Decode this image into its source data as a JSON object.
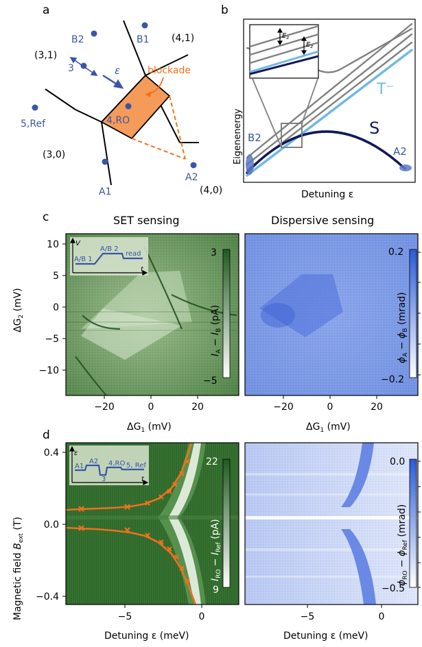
{
  "panel_a": {
    "letter": "a",
    "states": [
      "(3,1)",
      "(4,1)",
      "(3,0)",
      "(4,0)"
    ],
    "dots": [
      {
        "label": "B2"
      },
      {
        "label": "B1"
      },
      {
        "label": "3"
      },
      {
        "label": "5,Ref"
      },
      {
        "label": "4,RO"
      },
      {
        "label": "A1"
      },
      {
        "label": "A2"
      }
    ],
    "epsilon": "ε",
    "blockade": "blockade",
    "colors": {
      "dot": "#3a55a6",
      "blockade_fill": "#f59b59",
      "blockade_line": "#f0711c"
    }
  },
  "panel_b": {
    "letter": "b",
    "ylabel": "Eigenenergy",
    "xlabel": "Detuning ε",
    "t_minus": "T⁻",
    "singlet": "S",
    "b2": "B2",
    "a2": "A2",
    "ez": "E",
    "ez_sub": "z",
    "colors": {
      "gray": "#808080",
      "light_blue": "#6fb8e8",
      "navy": "#14195a"
    }
  },
  "panel_c": {
    "letter": "c",
    "left_title": "SET sensing",
    "right_title": "Dispersive sensing",
    "ylabel_main": "ΔG",
    "ylabel_sub": "2",
    "ylabel_unit": " (mV)",
    "xlabel_main": "ΔG",
    "xlabel_sub": "1",
    "xlabel_unit": " (mV)",
    "y_ticks": [
      "10",
      "5",
      "0",
      "−5",
      "−10"
    ],
    "x_ticks": [
      "−20",
      "0",
      "20"
    ],
    "left_cbar": {
      "max": "3",
      "min": "−5",
      "label": "I_A − I_B (pA)"
    },
    "right_cbar": {
      "max": "0.2",
      "min": "−0.2",
      "label": "ϕ_A − ϕ_B (mrad)"
    },
    "inset": {
      "v": "V",
      "t": "t",
      "ab1": "A/B 1",
      "ab2": "A/B 2",
      "read": "read"
    },
    "colors": {
      "green": "#5d8c4f",
      "blue": "#7a95e2"
    }
  },
  "panel_d": {
    "letter": "d",
    "ylabel": "Magnetic field B_ext (T)",
    "xlabel": "Detuning ε (meV)",
    "y_ticks": [
      "0.4",
      "0.0",
      "−0.4"
    ],
    "x_ticks": [
      "−5",
      "0"
    ],
    "left_cbar": {
      "max": "22",
      "min": "9",
      "label": "I_RO − I_Ref (pA)"
    },
    "right_cbar": {
      "max": "0.0",
      "min": "−0.5",
      "label": "ϕ_RO − ϕ_Ref (mrad)"
    },
    "inset": {
      "e": "ε",
      "t": "t",
      "a1": "A1",
      "a2": "A2",
      "three": "3",
      "ro": "4,RO",
      "ref": "5, Ref"
    },
    "colors": {
      "dark_green": "#2f6a2a",
      "orange": "#f0711c"
    }
  }
}
